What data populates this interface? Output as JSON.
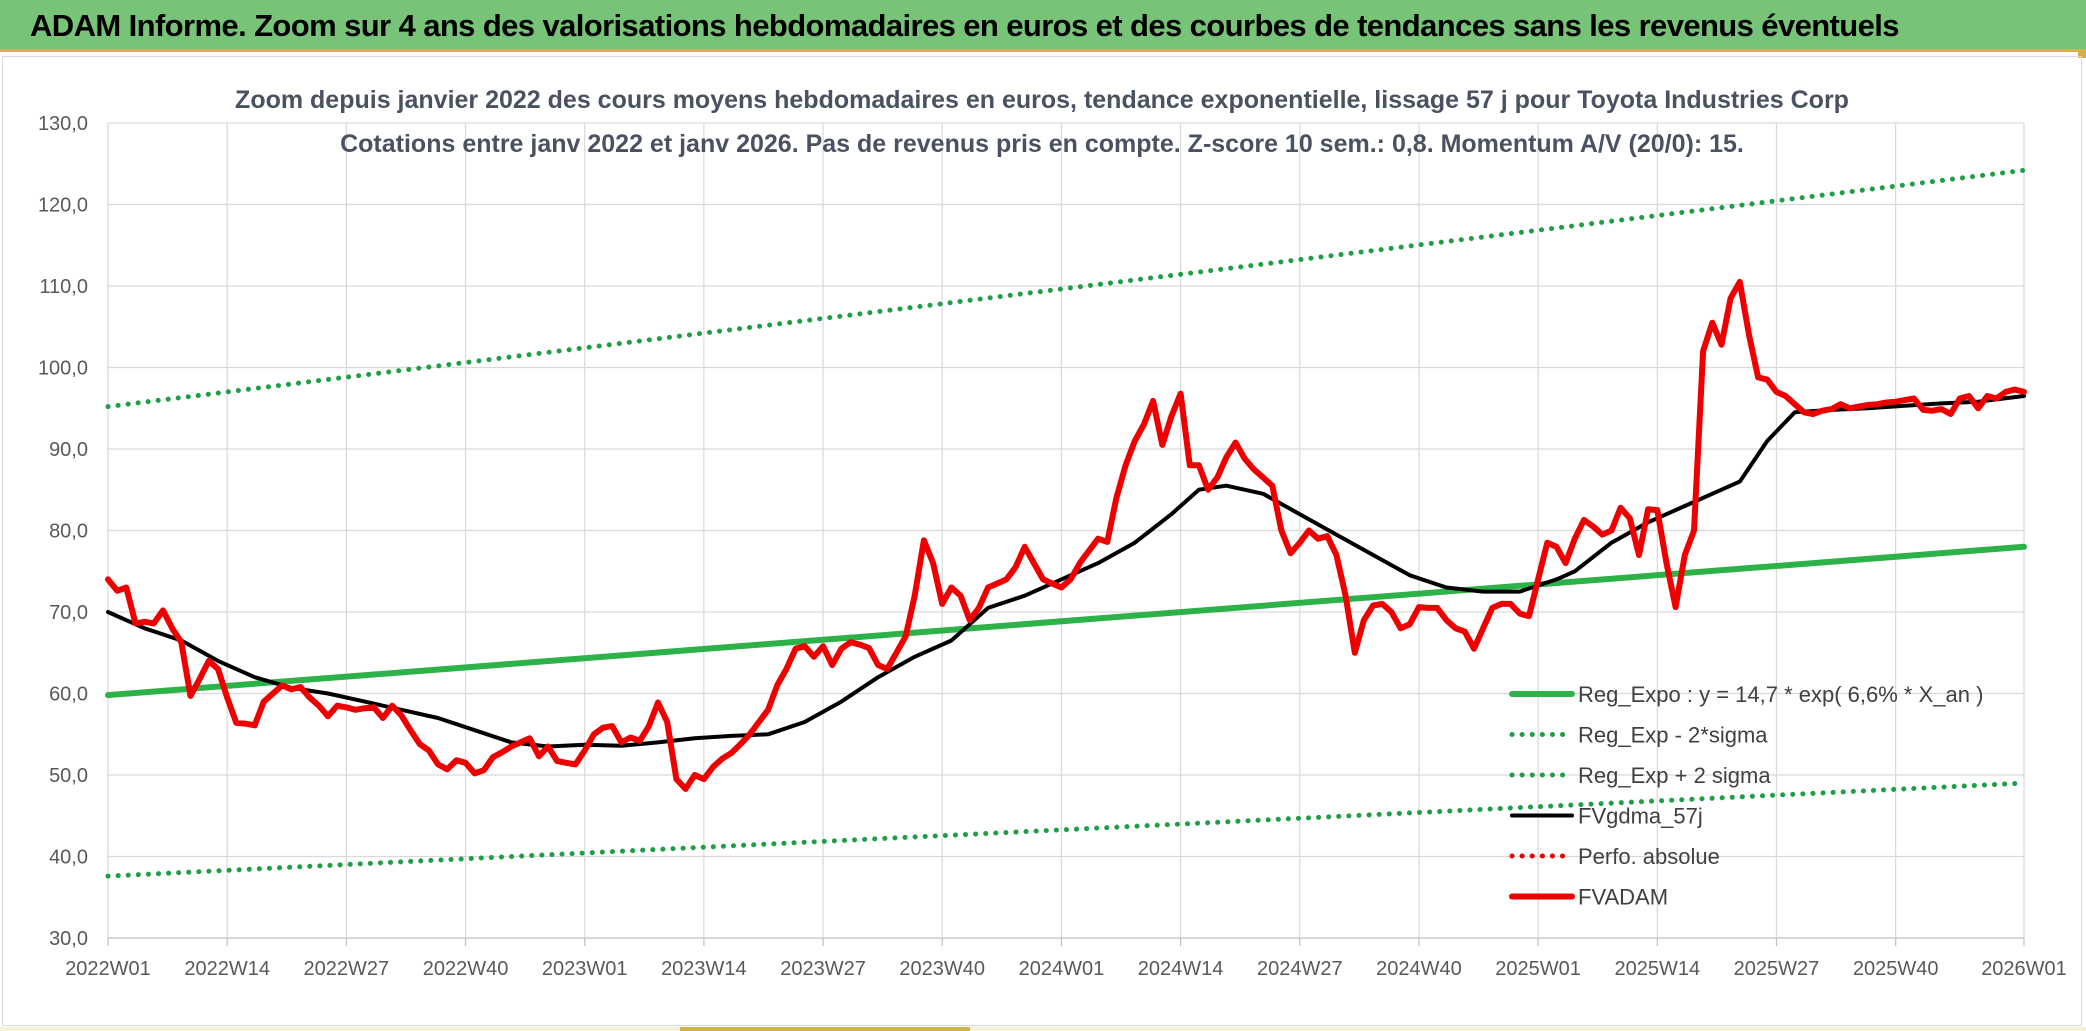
{
  "banner": {
    "title": "ADAM Informe. Zoom sur 4 ans des valorisations hebdomadaires en euros et des courbes de tendances sans les revenus éventuels"
  },
  "chart_data": {
    "type": "line",
    "title": "Zoom depuis janvier 2022 des cours moyens hebdomadaires en euros, tendance exponentielle, lissage 57 j pour Toyota Industries Corp",
    "subtitle": "Cotations entre janv 2022 et janv 2026. Pas de revenus pris en compte. Z-score 10 sem.: 0,8. Momentum A/V (20/0): 15.",
    "xlabel": "",
    "ylabel": "",
    "ylim": [
      30,
      130
    ],
    "xlim": [
      0,
      209
    ],
    "grid": true,
    "legend_position": "bottom-right",
    "y_ticks": [
      "30,0",
      "40,0",
      "50,0",
      "60,0",
      "70,0",
      "80,0",
      "90,0",
      "100,0",
      "110,0",
      "120,0",
      "130,0"
    ],
    "x_ticks": [
      "2022W01",
      "2022W14",
      "2022W27",
      "2022W40",
      "2023W01",
      "2023W14",
      "2023W27",
      "2023W40",
      "2024W01",
      "2024W14",
      "2024W27",
      "2024W40",
      "2025W01",
      "2025W14",
      "2025W27",
      "2025W40",
      "2026W01"
    ],
    "series": [
      {
        "name": "Reg_Expo : y = 14,7 * exp( 6,6% *  X_an )",
        "color": "#2db24a",
        "style": "solid-thick",
        "points": [
          [
            0,
            59.8
          ],
          [
            209,
            78.0
          ]
        ]
      },
      {
        "name": "Reg_Exp - 2*sigma",
        "color": "#1f9e45",
        "style": "dotted",
        "points": [
          [
            0,
            37.6
          ],
          [
            209,
            49.0
          ]
        ]
      },
      {
        "name": "Reg_Exp + 2 sigma",
        "color": "#1f9e45",
        "style": "dotted",
        "points": [
          [
            0,
            95.2
          ],
          [
            209,
            124.2
          ]
        ]
      },
      {
        "name": "FVgdma_57j",
        "color": "#000000",
        "style": "solid",
        "points": [
          [
            0,
            70.0
          ],
          [
            4,
            68.0
          ],
          [
            8,
            66.5
          ],
          [
            12,
            64.0
          ],
          [
            16,
            62.0
          ],
          [
            20,
            60.7
          ],
          [
            24,
            60.0
          ],
          [
            28,
            59.0
          ],
          [
            32,
            58.0
          ],
          [
            36,
            57.0
          ],
          [
            40,
            55.5
          ],
          [
            44,
            54.0
          ],
          [
            48,
            53.5
          ],
          [
            52,
            53.7
          ],
          [
            56,
            53.6
          ],
          [
            60,
            54.0
          ],
          [
            64,
            54.5
          ],
          [
            68,
            54.8
          ],
          [
            72,
            55.0
          ],
          [
            76,
            56.5
          ],
          [
            80,
            59.0
          ],
          [
            84,
            62.0
          ],
          [
            88,
            64.5
          ],
          [
            92,
            66.5
          ],
          [
            96,
            70.5
          ],
          [
            100,
            72.0
          ],
          [
            104,
            74.0
          ],
          [
            108,
            76.0
          ],
          [
            112,
            78.5
          ],
          [
            116,
            82.0
          ],
          [
            119,
            85.0
          ],
          [
            122,
            85.5
          ],
          [
            126,
            84.5
          ],
          [
            130,
            82.0
          ],
          [
            134,
            79.5
          ],
          [
            138,
            77.0
          ],
          [
            142,
            74.5
          ],
          [
            146,
            73.0
          ],
          [
            150,
            72.5
          ],
          [
            154,
            72.5
          ],
          [
            158,
            74.0
          ],
          [
            160,
            75.0
          ],
          [
            164,
            78.5
          ],
          [
            168,
            81.0
          ],
          [
            172,
            83.0
          ],
          [
            176,
            85.0
          ],
          [
            178,
            86.0
          ],
          [
            181,
            91.0
          ],
          [
            184,
            94.5
          ],
          [
            188,
            94.8
          ],
          [
            192,
            95.0
          ],
          [
            196,
            95.3
          ],
          [
            200,
            95.6
          ],
          [
            204,
            95.8
          ],
          [
            209,
            96.5
          ]
        ]
      },
      {
        "name": "Perfo. absolue",
        "color": "#e00000",
        "style": "dotted",
        "points": []
      },
      {
        "name": "FVADAM",
        "color": "#ee0000",
        "style": "solid-thick",
        "points": [
          [
            0,
            74.0
          ],
          [
            1,
            72.6
          ],
          [
            2,
            73.0
          ],
          [
            3,
            68.6
          ],
          [
            4,
            68.8
          ],
          [
            5,
            68.6
          ],
          [
            6,
            70.2
          ],
          [
            7,
            68.0
          ],
          [
            8,
            66.3
          ],
          [
            9,
            59.7
          ],
          [
            10,
            61.8
          ],
          [
            11,
            64.0
          ],
          [
            12,
            63.0
          ],
          [
            13,
            59.5
          ],
          [
            14,
            56.4
          ],
          [
            15,
            56.3
          ],
          [
            16,
            56.1
          ],
          [
            17,
            59.0
          ],
          [
            18,
            60.0
          ],
          [
            19,
            61.0
          ],
          [
            20,
            60.5
          ],
          [
            21,
            60.8
          ],
          [
            22,
            59.5
          ],
          [
            23,
            58.5
          ],
          [
            24,
            57.2
          ],
          [
            25,
            58.5
          ],
          [
            26,
            58.3
          ],
          [
            27,
            58.0
          ],
          [
            28,
            58.2
          ],
          [
            29,
            58.3
          ],
          [
            30,
            57.0
          ],
          [
            31,
            58.5
          ],
          [
            32,
            57.3
          ],
          [
            33,
            55.5
          ],
          [
            34,
            53.8
          ],
          [
            35,
            53.0
          ],
          [
            36,
            51.3
          ],
          [
            37,
            50.7
          ],
          [
            38,
            51.8
          ],
          [
            39,
            51.5
          ],
          [
            40,
            50.2
          ],
          [
            41,
            50.6
          ],
          [
            42,
            52.2
          ],
          [
            43,
            52.8
          ],
          [
            44,
            53.5
          ],
          [
            45,
            54.0
          ],
          [
            46,
            54.5
          ],
          [
            47,
            52.3
          ],
          [
            48,
            53.5
          ],
          [
            49,
            51.7
          ],
          [
            50,
            51.5
          ],
          [
            51,
            51.3
          ],
          [
            52,
            53.0
          ],
          [
            53,
            55.0
          ],
          [
            54,
            55.8
          ],
          [
            55,
            56.0
          ],
          [
            56,
            54.0
          ],
          [
            57,
            54.6
          ],
          [
            58,
            54.2
          ],
          [
            59,
            56.0
          ],
          [
            60,
            58.9
          ],
          [
            61,
            56.5
          ],
          [
            62,
            49.5
          ],
          [
            63,
            48.3
          ],
          [
            64,
            50.0
          ],
          [
            65,
            49.5
          ],
          [
            66,
            51.0
          ],
          [
            67,
            52.0
          ],
          [
            68,
            52.7
          ],
          [
            69,
            53.8
          ],
          [
            70,
            55.0
          ],
          [
            71,
            56.5
          ],
          [
            72,
            58.0
          ],
          [
            73,
            61.0
          ],
          [
            74,
            63.0
          ],
          [
            75,
            65.5
          ],
          [
            76,
            65.8
          ],
          [
            77,
            64.5
          ],
          [
            78,
            65.8
          ],
          [
            79,
            63.5
          ],
          [
            80,
            65.5
          ],
          [
            81,
            66.3
          ],
          [
            82,
            66.0
          ],
          [
            83,
            65.6
          ],
          [
            84,
            63.5
          ],
          [
            85,
            63.0
          ],
          [
            86,
            65.0
          ],
          [
            87,
            67.0
          ],
          [
            88,
            72.0
          ],
          [
            89,
            78.8
          ],
          [
            90,
            76.0
          ],
          [
            91,
            71.0
          ],
          [
            92,
            73.0
          ],
          [
            93,
            72.0
          ],
          [
            94,
            69.0
          ],
          [
            95,
            70.5
          ],
          [
            96,
            73.0
          ],
          [
            97,
            73.5
          ],
          [
            98,
            74.0
          ],
          [
            99,
            75.5
          ],
          [
            100,
            78.0
          ],
          [
            101,
            76.0
          ],
          [
            102,
            74.0
          ],
          [
            103,
            73.5
          ],
          [
            104,
            73.0
          ],
          [
            105,
            74.0
          ],
          [
            106,
            76.0
          ],
          [
            107,
            77.5
          ],
          [
            108,
            79.0
          ],
          [
            109,
            78.6
          ],
          [
            110,
            84.0
          ],
          [
            111,
            88.0
          ],
          [
            112,
            91.0
          ],
          [
            113,
            93.0
          ],
          [
            114,
            95.9
          ],
          [
            115,
            90.5
          ],
          [
            116,
            94.0
          ],
          [
            117,
            96.8
          ],
          [
            118,
            88.0
          ],
          [
            119,
            88.0
          ],
          [
            120,
            85.0
          ],
          [
            121,
            86.5
          ],
          [
            122,
            89.0
          ],
          [
            123,
            90.8
          ],
          [
            124,
            88.8
          ],
          [
            125,
            87.5
          ],
          [
            126,
            86.5
          ],
          [
            127,
            85.5
          ],
          [
            128,
            80.0
          ],
          [
            129,
            77.2
          ],
          [
            130,
            78.5
          ],
          [
            131,
            80.0
          ],
          [
            132,
            79.0
          ],
          [
            133,
            79.3
          ],
          [
            134,
            77.0
          ],
          [
            135,
            72.0
          ],
          [
            136,
            65.0
          ],
          [
            137,
            69.0
          ],
          [
            138,
            70.8
          ],
          [
            139,
            71.0
          ],
          [
            140,
            70.0
          ],
          [
            141,
            68.0
          ],
          [
            142,
            68.5
          ],
          [
            143,
            70.6
          ],
          [
            144,
            70.5
          ],
          [
            145,
            70.5
          ],
          [
            146,
            69.0
          ],
          [
            147,
            68.0
          ],
          [
            148,
            67.6
          ],
          [
            149,
            65.5
          ],
          [
            150,
            68.0
          ],
          [
            151,
            70.5
          ],
          [
            152,
            71.0
          ],
          [
            153,
            71.0
          ],
          [
            154,
            69.8
          ],
          [
            155,
            69.5
          ],
          [
            156,
            74.0
          ],
          [
            157,
            78.5
          ],
          [
            158,
            78.0
          ],
          [
            159,
            76.0
          ],
          [
            160,
            79.0
          ],
          [
            161,
            81.3
          ],
          [
            162,
            80.5
          ],
          [
            163,
            79.5
          ],
          [
            164,
            80.0
          ],
          [
            165,
            82.8
          ],
          [
            166,
            81.5
          ],
          [
            167,
            77.0
          ],
          [
            168,
            82.6
          ],
          [
            169,
            82.5
          ],
          [
            170,
            76.0
          ],
          [
            171,
            70.6
          ],
          [
            172,
            77.0
          ],
          [
            173,
            80.0
          ],
          [
            174,
            102.0
          ],
          [
            175,
            105.5
          ],
          [
            176,
            102.8
          ],
          [
            177,
            108.5
          ],
          [
            178,
            110.5
          ],
          [
            179,
            104.0
          ],
          [
            180,
            98.8
          ],
          [
            181,
            98.5
          ],
          [
            182,
            97.0
          ],
          [
            183,
            96.5
          ],
          [
            184,
            95.5
          ],
          [
            185,
            94.5
          ],
          [
            186,
            94.3
          ],
          [
            187,
            94.7
          ],
          [
            188,
            94.9
          ],
          [
            189,
            95.5
          ],
          [
            190,
            95.0
          ],
          [
            191,
            95.2
          ],
          [
            192,
            95.4
          ],
          [
            193,
            95.5
          ],
          [
            194,
            95.7
          ],
          [
            195,
            95.8
          ],
          [
            196,
            96.0
          ],
          [
            197,
            96.2
          ],
          [
            198,
            94.8
          ],
          [
            199,
            94.7
          ],
          [
            200,
            94.9
          ],
          [
            201,
            94.3
          ],
          [
            202,
            96.2
          ],
          [
            203,
            96.5
          ],
          [
            204,
            95.0
          ],
          [
            205,
            96.5
          ],
          [
            206,
            96.2
          ],
          [
            207,
            97.0
          ],
          [
            208,
            97.3
          ],
          [
            209,
            97.0
          ]
        ]
      }
    ]
  }
}
